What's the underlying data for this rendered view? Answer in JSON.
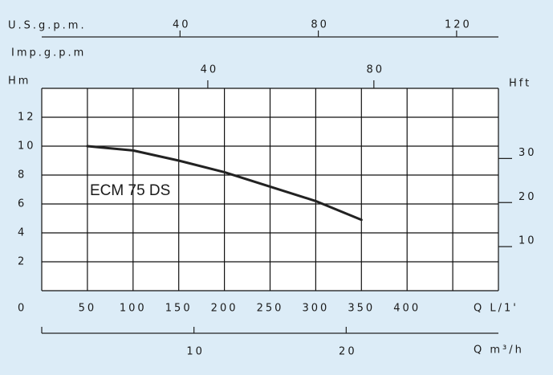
{
  "chart_data": {
    "type": "line",
    "x_label": "Q L/1'",
    "y_label": "Hm",
    "xlim": [
      0,
      500
    ],
    "xticks": [
      50,
      100,
      150,
      200,
      250,
      300,
      350,
      400
    ],
    "ylim": [
      0,
      14
    ],
    "yticks": [
      0,
      2,
      4,
      6,
      8,
      10,
      12
    ],
    "xgrid": [
      0,
      50,
      100,
      150,
      200,
      250,
      300,
      350,
      400,
      450,
      500
    ],
    "ygrid": [
      0,
      2,
      4,
      6,
      8,
      10,
      12,
      14
    ],
    "usgpm_label": "U.S.g.p.m.",
    "usgpm_lim": [
      0,
      132.1
    ],
    "usgpm_ticks": [
      40,
      80,
      120
    ],
    "impgpm_label": "Imp.g.p.m",
    "impgpm_lim": [
      0,
      110
    ],
    "impgpm_ticks": [
      40,
      80
    ],
    "y2_label": "Hft",
    "y2lim": [
      0,
      45.93
    ],
    "y2ticks": [
      10,
      20,
      30
    ],
    "m3h_label": "Q m³/h",
    "m3h_lim": [
      0,
      30
    ],
    "m3h_ticks": [
      10,
      20
    ],
    "series": [
      {
        "name": "ECM 75 DS",
        "color": "#222222",
        "x": [
          50,
          100,
          150,
          200,
          250,
          300,
          350
        ],
        "values": [
          10,
          9.7,
          9.0,
          8.2,
          7.2,
          6.2,
          4.9
        ]
      }
    ]
  }
}
